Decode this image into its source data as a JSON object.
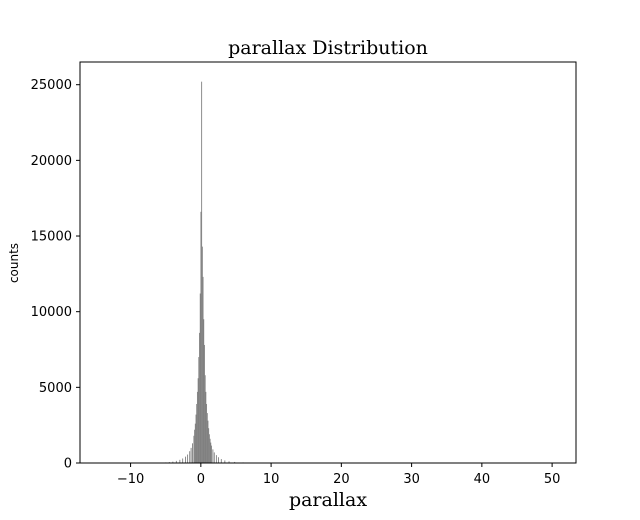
{
  "chart_data": {
    "type": "bar",
    "title": "parallax Distribution",
    "xlabel": "parallax",
    "ylabel": "counts",
    "xlim": [
      -17.2,
      53.4
    ],
    "ylim": [
      0,
      26500
    ],
    "xticks": [
      -10,
      0,
      10,
      20,
      30,
      40,
      50
    ],
    "xtick_labels": [
      "−10",
      "0",
      "10",
      "20",
      "30",
      "40",
      "50"
    ],
    "yticks": [
      0,
      5000,
      10000,
      15000,
      20000,
      25000
    ],
    "ytick_labels": [
      "0",
      "5000",
      "10000",
      "15000",
      "20000",
      "25000"
    ],
    "bar_color": "#808080",
    "grid": false,
    "legend": "none",
    "bin_width": 0.1,
    "bins": [
      {
        "x": -5.0,
        "count": 40
      },
      {
        "x": -4.5,
        "count": 60
      },
      {
        "x": -4.0,
        "count": 90
      },
      {
        "x": -3.5,
        "count": 140
      },
      {
        "x": -3.0,
        "count": 210
      },
      {
        "x": -2.6,
        "count": 300
      },
      {
        "x": -2.2,
        "count": 420
      },
      {
        "x": -1.9,
        "count": 560
      },
      {
        "x": -1.6,
        "count": 780
      },
      {
        "x": -1.4,
        "count": 1000
      },
      {
        "x": -1.2,
        "count": 1300
      },
      {
        "x": -1.0,
        "count": 1800
      },
      {
        "x": -0.9,
        "count": 2200
      },
      {
        "x": -0.8,
        "count": 2600
      },
      {
        "x": -0.7,
        "count": 3200
      },
      {
        "x": -0.6,
        "count": 3900
      },
      {
        "x": -0.5,
        "count": 4700
      },
      {
        "x": -0.4,
        "count": 5600
      },
      {
        "x": -0.3,
        "count": 7000
      },
      {
        "x": -0.2,
        "count": 8600
      },
      {
        "x": -0.1,
        "count": 11200
      },
      {
        "x": 0.0,
        "count": 16600
      },
      {
        "x": 0.1,
        "count": 25200
      },
      {
        "x": 0.2,
        "count": 14300
      },
      {
        "x": 0.3,
        "count": 12300
      },
      {
        "x": 0.4,
        "count": 9500
      },
      {
        "x": 0.5,
        "count": 7800
      },
      {
        "x": 0.6,
        "count": 5800
      },
      {
        "x": 0.7,
        "count": 4700
      },
      {
        "x": 0.8,
        "count": 3900
      },
      {
        "x": 0.9,
        "count": 3300
      },
      {
        "x": 1.0,
        "count": 2800
      },
      {
        "x": 1.1,
        "count": 2300
      },
      {
        "x": 1.2,
        "count": 1900
      },
      {
        "x": 1.3,
        "count": 1600
      },
      {
        "x": 1.4,
        "count": 1350
      },
      {
        "x": 1.5,
        "count": 1150
      },
      {
        "x": 1.7,
        "count": 900
      },
      {
        "x": 1.9,
        "count": 700
      },
      {
        "x": 2.2,
        "count": 520
      },
      {
        "x": 2.5,
        "count": 380
      },
      {
        "x": 2.9,
        "count": 260
      },
      {
        "x": 3.4,
        "count": 170
      },
      {
        "x": 4.0,
        "count": 110
      },
      {
        "x": 4.8,
        "count": 70
      },
      {
        "x": 6.0,
        "count": 40
      },
      {
        "x": 8.0,
        "count": 25
      },
      {
        "x": 11.0,
        "count": 15
      },
      {
        "x": 15.0,
        "count": 10
      },
      {
        "x": 20.0,
        "count": 8
      },
      {
        "x": 25.0,
        "count": 6
      },
      {
        "x": 30.0,
        "count": 5
      },
      {
        "x": 35.0,
        "count": 4
      },
      {
        "x": 40.0,
        "count": 4
      },
      {
        "x": 45.0,
        "count": 3
      },
      {
        "x": 50.0,
        "count": 3
      }
    ]
  }
}
